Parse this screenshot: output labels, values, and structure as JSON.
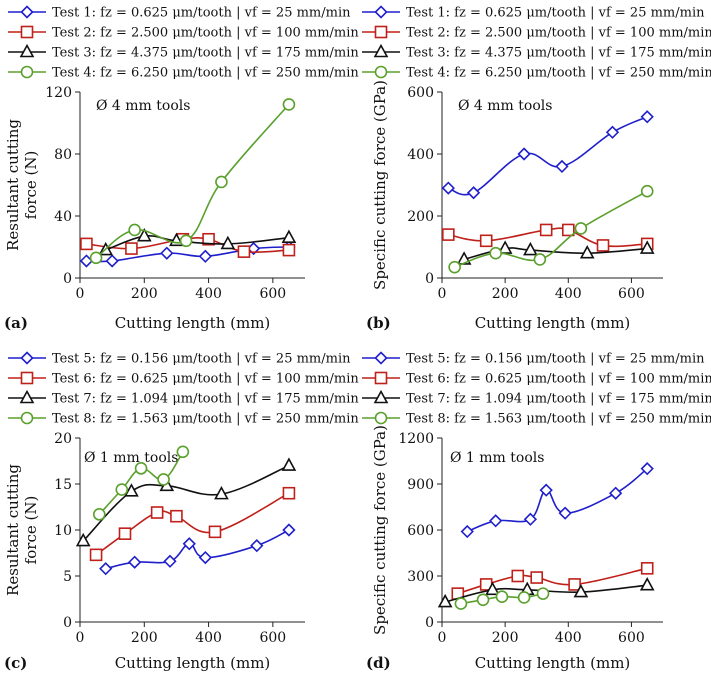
{
  "chart_data": [
    {
      "type": "line",
      "panel_label": "(a)",
      "annotation": "Ø 4 mm tools",
      "xlabel": "Cutting length (mm)",
      "ylabel": "Resultant cutting force (N)",
      "ylabel_lines": [
        "Resultant cutting",
        "force (N)"
      ],
      "xlim": [
        0,
        700
      ],
      "ylim": [
        0,
        120
      ],
      "xticks": [
        0,
        200,
        400,
        600
      ],
      "yticks": [
        0,
        40,
        80,
        120
      ],
      "legend_position": "top",
      "series": [
        {
          "name": "Test 1: fz = 0.625 μm/tooth | vf = 25 mm/min",
          "marker": "diamond",
          "color": "#1f1fcc",
          "x": [
            20,
            100,
            270,
            390,
            540,
            650
          ],
          "y": [
            11,
            11,
            16,
            14,
            19,
            20
          ]
        },
        {
          "name": "Test 2: fz = 2.500 μm/tooth | vf = 100 mm/min",
          "marker": "square",
          "color": "#c0201a",
          "x": [
            20,
            160,
            320,
            400,
            510,
            650
          ],
          "y": [
            22,
            19,
            25,
            25,
            17,
            18
          ]
        },
        {
          "name": "Test 3: fz = 4.375 μm/tooth | vf = 175 mm/min",
          "marker": "triangle",
          "color": "#111111",
          "x": [
            80,
            200,
            300,
            460,
            650
          ],
          "y": [
            18,
            27,
            24,
            22,
            26
          ]
        },
        {
          "name": "Test 4: fz = 6.250 μm/tooth | vf = 250 mm/min",
          "marker": "circle",
          "color": "#5aa02c",
          "x": [
            50,
            170,
            330,
            440,
            650
          ],
          "y": [
            13,
            31,
            24,
            62,
            112
          ]
        }
      ]
    },
    {
      "type": "line",
      "panel_label": "(b)",
      "annotation": "Ø 4 mm tools",
      "xlabel": "Cutting length (mm)",
      "ylabel": "Specific cutting force (GPa)",
      "ylabel_lines": [
        "Specific cutting force (GPa)"
      ],
      "xlim": [
        0,
        700
      ],
      "ylim": [
        0,
        600
      ],
      "xticks": [
        0,
        200,
        400,
        600
      ],
      "yticks": [
        0,
        200,
        400,
        600
      ],
      "legend_position": "top",
      "series": [
        {
          "name": "Test 1: fz = 0.625 μm/tooth | vf = 25 mm/min",
          "marker": "diamond",
          "color": "#1f1fcc",
          "x": [
            20,
            100,
            260,
            380,
            540,
            650
          ],
          "y": [
            290,
            275,
            400,
            360,
            470,
            520
          ]
        },
        {
          "name": "Test 2: fz = 2.500 μm/tooth | vf = 100 mm/min",
          "marker": "square",
          "color": "#c0201a",
          "x": [
            20,
            140,
            330,
            400,
            510,
            650
          ],
          "y": [
            140,
            120,
            155,
            155,
            105,
            110
          ]
        },
        {
          "name": "Test 3: fz = 4.375 μm/tooth | vf = 175 mm/min",
          "marker": "triangle",
          "color": "#111111",
          "x": [
            70,
            200,
            280,
            460,
            650
          ],
          "y": [
            60,
            95,
            90,
            80,
            95
          ]
        },
        {
          "name": "Test 4: fz = 6.250 μm/tooth | vf = 250 mm/min",
          "marker": "circle",
          "color": "#5aa02c",
          "x": [
            40,
            170,
            310,
            440,
            650
          ],
          "y": [
            35,
            80,
            60,
            160,
            280
          ]
        }
      ]
    },
    {
      "type": "line",
      "panel_label": "(c)",
      "annotation": "Ø 1 mm tools",
      "xlabel": "Cutting length (mm)",
      "ylabel": "Resultant cutting force (N)",
      "ylabel_lines": [
        "Resultant cutting",
        "force (N)"
      ],
      "xlim": [
        0,
        700
      ],
      "ylim": [
        0,
        20
      ],
      "xticks": [
        0,
        200,
        400,
        600
      ],
      "yticks": [
        0,
        5,
        10,
        15,
        20
      ],
      "legend_position": "top",
      "series": [
        {
          "name": "Test 5: fz = 0.156 μm/tooth | vf = 25 mm/min",
          "marker": "diamond",
          "color": "#1f1fcc",
          "x": [
            80,
            170,
            280,
            340,
            390,
            550,
            650
          ],
          "y": [
            5.8,
            6.5,
            6.6,
            8.5,
            7.0,
            8.3,
            10.0
          ]
        },
        {
          "name": "Test 6: fz = 0.625 μm/tooth | vf = 100 mm/min",
          "marker": "square",
          "color": "#c0201a",
          "x": [
            50,
            140,
            240,
            300,
            420,
            650
          ],
          "y": [
            7.3,
            9.6,
            11.9,
            11.5,
            9.8,
            14.0
          ]
        },
        {
          "name": "Test 7: fz = 1.094 μm/tooth | vf = 175 mm/min",
          "marker": "triangle",
          "color": "#111111",
          "x": [
            10,
            160,
            270,
            440,
            650
          ],
          "y": [
            8.8,
            14.2,
            14.8,
            13.9,
            17.0
          ]
        },
        {
          "name": "Test 8: fz = 1.563 μm/tooth | vf = 250 mm/min",
          "marker": "circle",
          "color": "#5aa02c",
          "x": [
            60,
            130,
            190,
            260,
            320
          ],
          "y": [
            11.7,
            14.4,
            16.7,
            15.5,
            18.5
          ]
        }
      ]
    },
    {
      "type": "line",
      "panel_label": "(d)",
      "annotation": "Ø 1 mm tools",
      "xlabel": "Cutting length (mm)",
      "ylabel": "Specific cutting force (GPa)",
      "ylabel_lines": [
        "Specific cutting force (GPa)"
      ],
      "xlim": [
        0,
        700
      ],
      "ylim": [
        0,
        1200
      ],
      "xticks": [
        0,
        200,
        400,
        600
      ],
      "yticks": [
        0,
        300,
        600,
        900,
        1200
      ],
      "legend_position": "top",
      "series": [
        {
          "name": "Test 5: fz = 0.156 μm/tooth | vf = 25 mm/min",
          "marker": "diamond",
          "color": "#1f1fcc",
          "x": [
            80,
            170,
            280,
            330,
            390,
            550,
            650
          ],
          "y": [
            590,
            660,
            670,
            860,
            710,
            840,
            1000
          ]
        },
        {
          "name": "Test 6: fz = 0.625 μm/tooth | vf = 100 mm/min",
          "marker": "square",
          "color": "#c0201a",
          "x": [
            50,
            140,
            240,
            300,
            420,
            650
          ],
          "y": [
            185,
            245,
            300,
            290,
            245,
            350
          ]
        },
        {
          "name": "Test 7: fz = 1.094 μm/tooth | vf = 175 mm/min",
          "marker": "triangle",
          "color": "#111111",
          "x": [
            10,
            160,
            270,
            440,
            650
          ],
          "y": [
            130,
            210,
            210,
            195,
            240
          ]
        },
        {
          "name": "Test 8: fz = 1.563 μm/tooth | vf = 250 mm/min",
          "marker": "circle",
          "color": "#5aa02c",
          "x": [
            60,
            130,
            190,
            260,
            320
          ],
          "y": [
            120,
            145,
            165,
            160,
            185
          ]
        }
      ]
    }
  ]
}
